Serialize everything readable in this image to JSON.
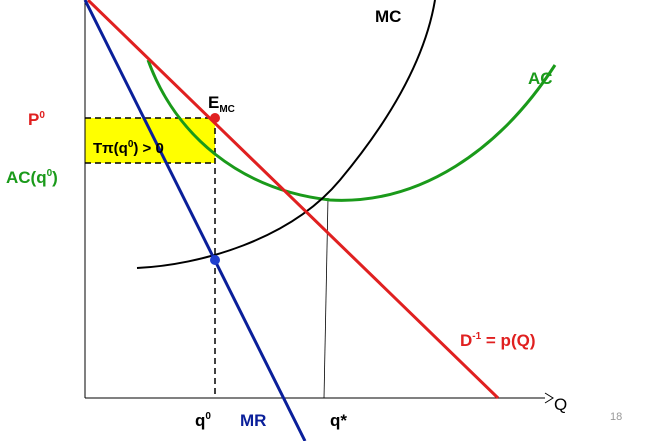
{
  "labels": {
    "mc": "MC",
    "ac": "AC",
    "price": {
      "base": "P",
      "sup": "0"
    },
    "emc": {
      "base": "E",
      "sub": "MC"
    },
    "profit": {
      "base": "Tπ(q",
      "sup": "0",
      "rest": ") > 0"
    },
    "ac_q0": {
      "base": "AC(q",
      "sup": "0",
      "rest": ")"
    },
    "demand": {
      "base": "D",
      "sup": "-1",
      "rest": " = p(Q)"
    },
    "q0": {
      "base": "q",
      "sup": "0"
    },
    "mr": "MR",
    "qstar": "q*",
    "q_axis": "Q"
  },
  "page_number": "18"
}
